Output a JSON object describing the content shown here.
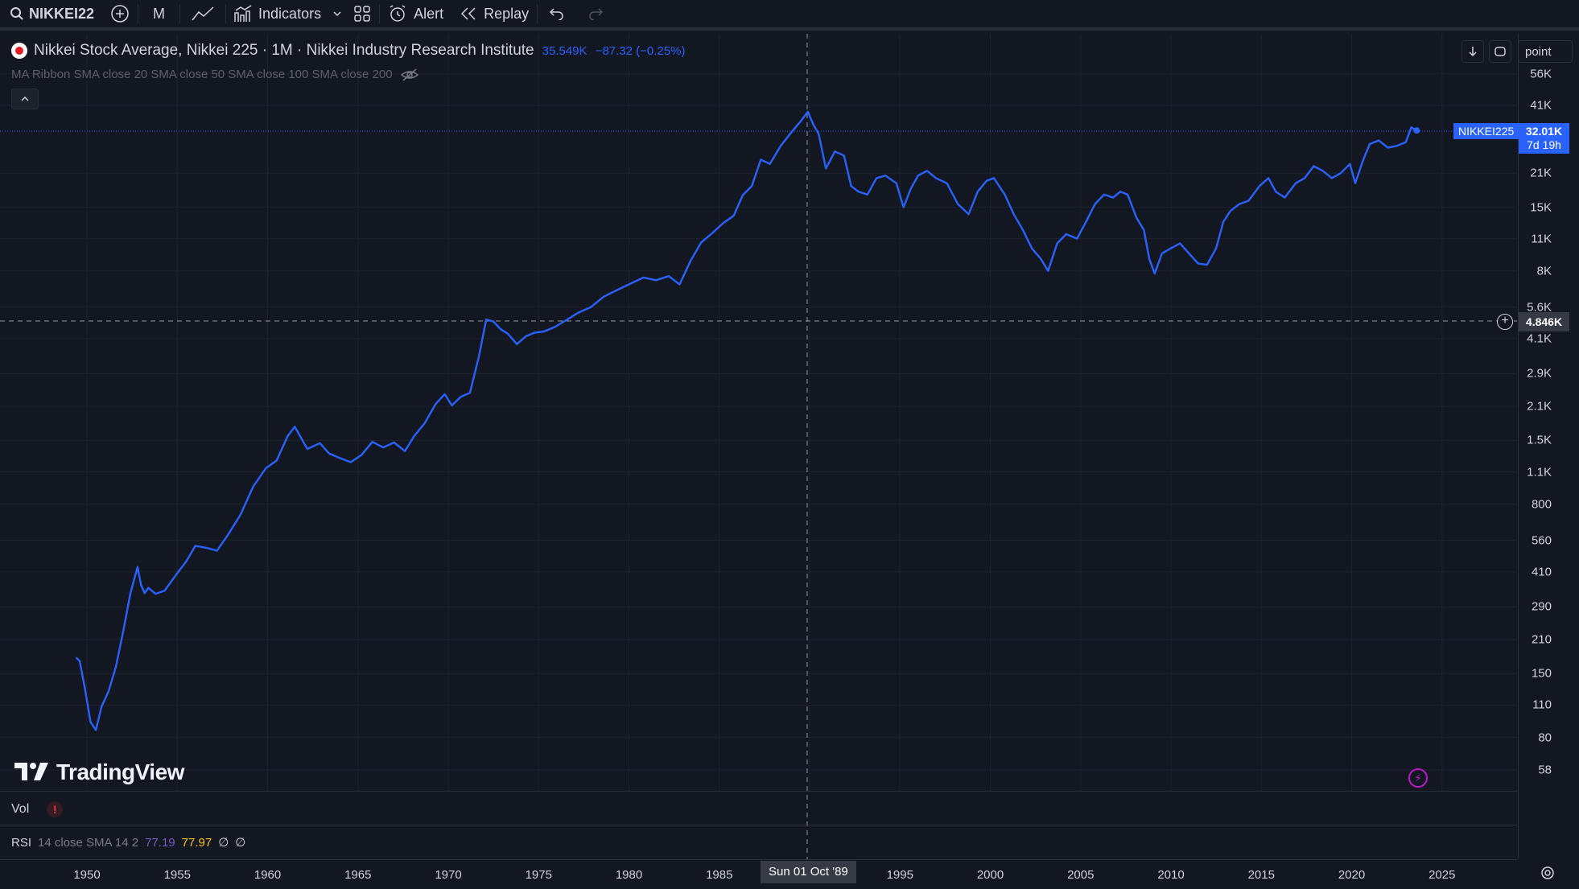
{
  "toolbar": {
    "symbol": "NIKKEI22",
    "interval": "M",
    "indicators_label": "Indicators",
    "alert_label": "Alert",
    "replay_label": "Replay"
  },
  "legend": {
    "title": "Nikkei Stock Average, Nikkei 225 · 1M · Nikkei Industry Research Institute",
    "last": "35.549K",
    "change": "−87.32 (−0.25%)",
    "ma_ribbon": "MA Ribbon SMA close 20 SMA close 50 SMA close 100 SMA close 200"
  },
  "scale_mode": "point",
  "price_ticks": [
    "56K",
    "41K",
    "21K",
    "15K",
    "11K",
    "8K",
    "5.6K",
    "4.1K",
    "2.9K",
    "2.1K",
    "1.5K",
    "1.1K",
    "800",
    "560",
    "410",
    "290",
    "210",
    "150",
    "110",
    "80",
    "58"
  ],
  "price_label": {
    "symbol": "NIKKEI225",
    "value": "32.01K",
    "countdown": "7d 19h"
  },
  "crosshair": {
    "price": "4.846K",
    "time": "Sun 01 Oct '89"
  },
  "time_ticks": [
    "1950",
    "1955",
    "1960",
    "1965",
    "1970",
    "1975",
    "1980",
    "1985",
    "1995",
    "2000",
    "2005",
    "2010",
    "2015",
    "2020",
    "2025"
  ],
  "watermark": "TradingView",
  "panes": {
    "vol_label": "Vol",
    "vol_warning": "!",
    "rsi_label": "RSI",
    "rsi_params": "14 close SMA 14 2",
    "rsi_value": "77.19",
    "rsi_ma_value": "77.97",
    "rsi_empty_1": "∅",
    "rsi_empty_2": "∅"
  },
  "colors": {
    "background": "#131722",
    "line": "#2962ff",
    "grid": "#1e222d",
    "rsi_value": "#7e57c2",
    "rsi_ma": "#f5c518"
  },
  "chart_data": {
    "type": "line",
    "title": "Nikkei Stock Average, Nikkei 225 · 1M · Nikkei Industry Research Institute",
    "xlabel": "",
    "ylabel": "",
    "log_scale": true,
    "ylim": [
      50,
      60000
    ],
    "xlim": [
      1948,
      2027
    ],
    "series": [
      {
        "name": "NIKKEI225",
        "x": [
          1949.4,
          1949.6,
          1949.9,
          1950.2,
          1950.5,
          1950.8,
          1951.2,
          1951.6,
          1952.0,
          1952.4,
          1952.8,
          1953.0,
          1953.2,
          1953.4,
          1953.8,
          1954.3,
          1954.9,
          1955.5,
          1956.0,
          1956.6,
          1957.2,
          1957.8,
          1958.5,
          1959.2,
          1959.9,
          1960.5,
          1961.1,
          1961.5,
          1962.2,
          1962.9,
          1963.4,
          1964.0,
          1964.6,
          1965.2,
          1965.8,
          1966.4,
          1967.0,
          1967.6,
          1968.1,
          1968.7,
          1969.3,
          1969.8,
          1970.2,
          1970.7,
          1971.2,
          1971.7,
          1972.1,
          1972.5,
          1972.9,
          1973.3,
          1973.8,
          1974.3,
          1974.8,
          1975.3,
          1975.9,
          1976.5,
          1977.2,
          1977.9,
          1978.6,
          1979.3,
          1980.0,
          1980.8,
          1981.5,
          1982.2,
          1982.8,
          1983.4,
          1984.0,
          1984.6,
          1985.2,
          1985.8,
          1986.3,
          1986.8,
          1987.3,
          1987.8,
          1988.4,
          1989.0,
          1989.5,
          1989.9,
          1990.2,
          1990.5,
          1990.9,
          1991.4,
          1991.9,
          1992.3,
          1992.7,
          1993.2,
          1993.7,
          1994.2,
          1994.8,
          1995.2,
          1995.6,
          1996.0,
          1996.5,
          1997.0,
          1997.6,
          1998.2,
          1998.8,
          1999.3,
          1999.8,
          2000.2,
          2000.8,
          2001.3,
          2001.8,
          2002.3,
          2002.8,
          2003.2,
          2003.7,
          2004.2,
          2004.8,
          2005.3,
          2005.8,
          2006.3,
          2006.8,
          2007.2,
          2007.6,
          2008.1,
          2008.5,
          2008.8,
          2009.1,
          2009.5,
          2010.0,
          2010.5,
          2011.0,
          2011.5,
          2012.0,
          2012.5,
          2012.9,
          2013.3,
          2013.8,
          2014.3,
          2014.9,
          2015.4,
          2015.8,
          2016.3,
          2016.9,
          2017.4,
          2017.9,
          2018.4,
          2018.9,
          2019.4,
          2019.9,
          2020.2,
          2020.6,
          2021.0,
          2021.5,
          2022.0,
          2022.5,
          2023.0,
          2023.3,
          2023.6
        ],
        "y": [
          176,
          170,
          128,
          93,
          86,
          108,
          126,
          160,
          226,
          330,
          430,
          360,
          332,
          350,
          330,
          340,
          395,
          455,
          530,
          520,
          505,
          590,
          720,
          950,
          1140,
          1230,
          1560,
          1720,
          1380,
          1460,
          1320,
          1260,
          1210,
          1300,
          1480,
          1400,
          1470,
          1350,
          1560,
          1780,
          2150,
          2370,
          2120,
          2310,
          2400,
          3450,
          4950,
          4850,
          4500,
          4300,
          3880,
          4200,
          4350,
          4400,
          4600,
          4900,
          5300,
          5600,
          6200,
          6600,
          7000,
          7500,
          7300,
          7600,
          7000,
          8800,
          10600,
          11600,
          12800,
          13800,
          16900,
          18500,
          24000,
          23000,
          27500,
          31500,
          35000,
          38500,
          34000,
          31000,
          22000,
          26000,
          25000,
          18500,
          17500,
          17000,
          20000,
          20500,
          19000,
          15000,
          18000,
          20500,
          21500,
          20000,
          19000,
          15500,
          14000,
          17500,
          19500,
          20000,
          17000,
          14000,
          12000,
          10000,
          9000,
          8000,
          10500,
          11500,
          11000,
          13000,
          15500,
          17000,
          16500,
          17500,
          17000,
          13500,
          12000,
          9000,
          7800,
          9500,
          10000,
          10500,
          9500,
          8600,
          8500,
          10000,
          13000,
          14500,
          15500,
          16000,
          18500,
          20000,
          17500,
          16500,
          19000,
          20000,
          22500,
          21500,
          20000,
          21000,
          23000,
          19000,
          23500,
          28000,
          29000,
          27000,
          27500,
          28500,
          33000,
          32000
        ]
      }
    ]
  }
}
